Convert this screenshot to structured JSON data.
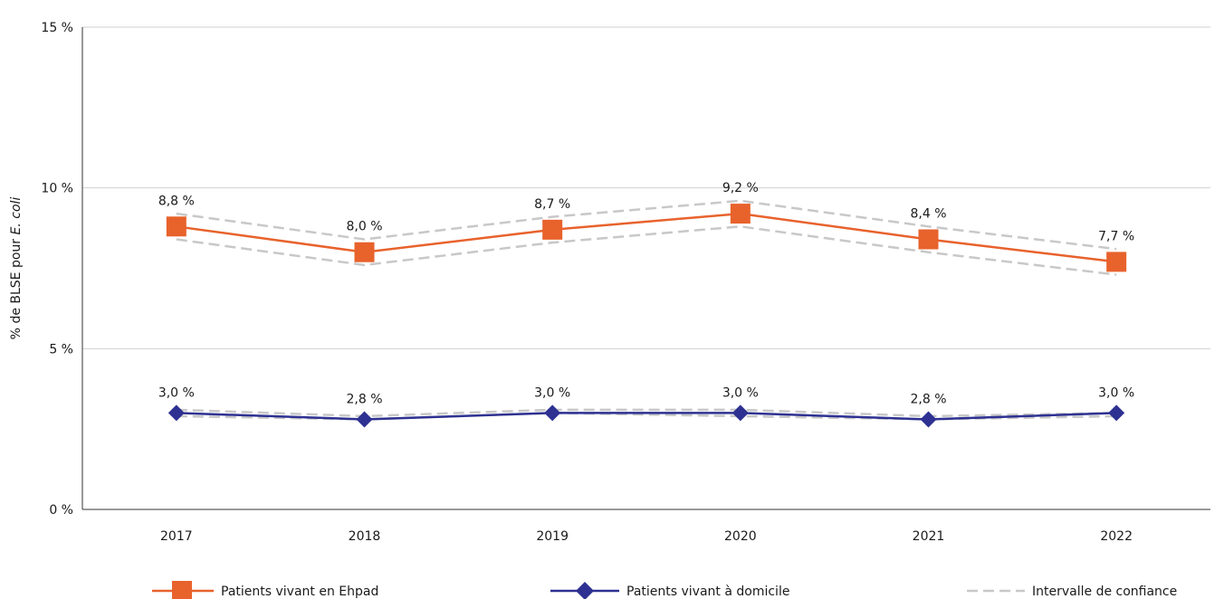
{
  "chart_data": {
    "type": "line",
    "categories": [
      "2017",
      "2018",
      "2019",
      "2020",
      "2021",
      "2022"
    ],
    "ylim": [
      0,
      15
    ],
    "yticks": [
      0,
      5,
      10,
      15
    ],
    "ytick_labels": [
      "0 %",
      "5 %",
      "10 %",
      "15 %"
    ],
    "ylabel": "% de BLSE pour",
    "ylabel_italic": "E. coli",
    "grid": true,
    "legend_position": "bottom",
    "series": [
      {
        "name": "Patients vivant en Ehpad",
        "marker": "square",
        "color": "#e8622c",
        "values": [
          8.8,
          8.0,
          8.7,
          9.2,
          8.4,
          7.7
        ],
        "labels": [
          "8,8 %",
          "8,0 %",
          "8,7 %",
          "9,2 %",
          "8,4 %",
          "7,7 %"
        ],
        "ci_upper": [
          9.2,
          8.4,
          9.1,
          9.6,
          8.8,
          8.1
        ],
        "ci_lower": [
          8.4,
          7.6,
          8.3,
          8.8,
          8.0,
          7.3
        ]
      },
      {
        "name": "Patients vivant à domicile",
        "marker": "diamond",
        "color": "#2e3191",
        "values": [
          3.0,
          2.8,
          3.0,
          3.0,
          2.8,
          3.0
        ],
        "labels": [
          "3,0 %",
          "2,8 %",
          "3,0 %",
          "3,0 %",
          "2,8 %",
          "3,0 %"
        ],
        "ci_upper": [
          3.1,
          2.9,
          3.1,
          3.1,
          2.9,
          3.0
        ],
        "ci_lower": [
          2.9,
          2.8,
          3.0,
          2.9,
          2.8,
          2.9
        ]
      }
    ],
    "ci_legend": "Intervalle de confiance",
    "ci_color": "#c8c8c8"
  }
}
